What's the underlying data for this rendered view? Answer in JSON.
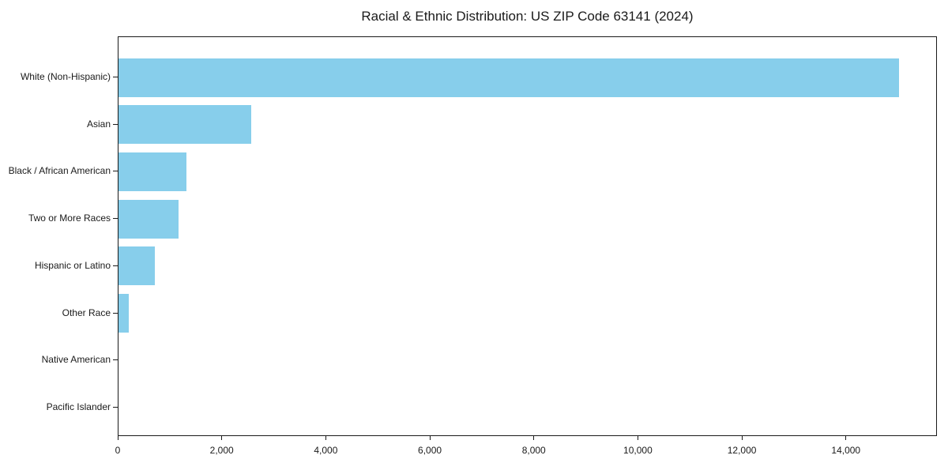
{
  "chart_data": {
    "type": "bar",
    "orientation": "horizontal",
    "title": "Racial & Ethnic Distribution: US ZIP Code 63141 (2024)",
    "categories": [
      "White (Non-Hispanic)",
      "Asian",
      "Black / African American",
      "Two or More Races",
      "Hispanic or Latino",
      "Other Race",
      "Native American",
      "Pacific Islander"
    ],
    "values": [
      15000,
      2550,
      1300,
      1150,
      700,
      200,
      0,
      0
    ],
    "xlabel": "",
    "ylabel": "",
    "xlim": [
      0,
      15750
    ],
    "x_ticks": [
      0,
      2000,
      4000,
      6000,
      8000,
      10000,
      12000,
      14000
    ],
    "x_tick_labels": [
      "0",
      "2,000",
      "4,000",
      "6,000",
      "8,000",
      "10,000",
      "12,000",
      "14,000"
    ],
    "bar_color": "#87CEEB",
    "grid": false,
    "legend": "none"
  }
}
